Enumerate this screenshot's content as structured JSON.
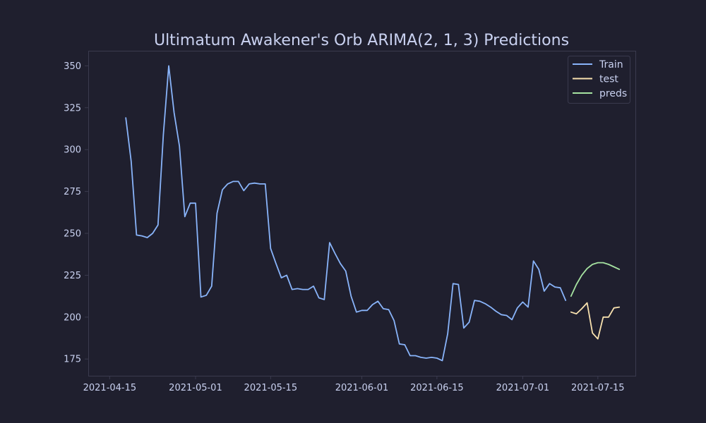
{
  "chart_data": {
    "type": "line",
    "title": "Ultimatum Awakener's Orb ARIMA(2, 1, 3) Predictions",
    "xlabel": "",
    "ylabel": "",
    "xlim": [
      "2021-04-11",
      "2021-07-22"
    ],
    "ylim": [
      165,
      359
    ],
    "x_ticks": [
      "2021-04-15",
      "2021-05-01",
      "2021-05-15",
      "2021-06-01",
      "2021-06-15",
      "2021-07-01",
      "2021-07-15"
    ],
    "y_ticks": [
      175,
      200,
      225,
      250,
      275,
      300,
      325,
      350
    ],
    "grid": false,
    "legend_position": "top-right",
    "colors": {
      "background": "#1f1f2e",
      "axes_border": "#3a3a4e",
      "text": "#c9d1f0",
      "train": "#89b4fa",
      "test": "#f9e2af",
      "preds": "#a6e3a1"
    },
    "series": [
      {
        "name": "Train",
        "color_key": "train",
        "points": [
          [
            "2021-04-18",
            319
          ],
          [
            "2021-04-19",
            293
          ],
          [
            "2021-04-20",
            249
          ],
          [
            "2021-04-21",
            248.5
          ],
          [
            "2021-04-22",
            247.5
          ],
          [
            "2021-04-23",
            250
          ],
          [
            "2021-04-24",
            255
          ],
          [
            "2021-04-25",
            309
          ],
          [
            "2021-04-26",
            350
          ],
          [
            "2021-04-27",
            322
          ],
          [
            "2021-04-28",
            302
          ],
          [
            "2021-04-29",
            260
          ],
          [
            "2021-04-30",
            268
          ],
          [
            "2021-05-01",
            268
          ],
          [
            "2021-05-02",
            212
          ],
          [
            "2021-05-03",
            213
          ],
          [
            "2021-05-04",
            218.5
          ],
          [
            "2021-05-05",
            262
          ],
          [
            "2021-05-06",
            276
          ],
          [
            "2021-05-07",
            279.5
          ],
          [
            "2021-05-08",
            281
          ],
          [
            "2021-05-09",
            281
          ],
          [
            "2021-05-10",
            275.5
          ],
          [
            "2021-05-11",
            279.5
          ],
          [
            "2021-05-12",
            280
          ],
          [
            "2021-05-13",
            279.5
          ],
          [
            "2021-05-14",
            279.5
          ],
          [
            "2021-05-15",
            241
          ],
          [
            "2021-05-16",
            232
          ],
          [
            "2021-05-17",
            223.5
          ],
          [
            "2021-05-18",
            225
          ],
          [
            "2021-05-19",
            216.5
          ],
          [
            "2021-05-20",
            217
          ],
          [
            "2021-05-21",
            216.5
          ],
          [
            "2021-05-22",
            216.5
          ],
          [
            "2021-05-23",
            218.5
          ],
          [
            "2021-05-24",
            211.5
          ],
          [
            "2021-05-25",
            210.5
          ],
          [
            "2021-05-26",
            244.5
          ],
          [
            "2021-05-27",
            238
          ],
          [
            "2021-05-28",
            232
          ],
          [
            "2021-05-29",
            227.5
          ],
          [
            "2021-05-30",
            212.5
          ],
          [
            "2021-05-31",
            203
          ],
          [
            "2021-06-01",
            204
          ],
          [
            "2021-06-02",
            204
          ],
          [
            "2021-06-03",
            207.5
          ],
          [
            "2021-06-04",
            209.5
          ],
          [
            "2021-06-05",
            205
          ],
          [
            "2021-06-06",
            204.5
          ],
          [
            "2021-06-07",
            198
          ],
          [
            "2021-06-08",
            184
          ],
          [
            "2021-06-09",
            183.5
          ],
          [
            "2021-06-10",
            177
          ],
          [
            "2021-06-11",
            177
          ],
          [
            "2021-06-12",
            176
          ],
          [
            "2021-06-13",
            175.5
          ],
          [
            "2021-06-14",
            176
          ],
          [
            "2021-06-15",
            175.5
          ],
          [
            "2021-06-16",
            174
          ],
          [
            "2021-06-17",
            190
          ],
          [
            "2021-06-18",
            220
          ],
          [
            "2021-06-19",
            219.5
          ],
          [
            "2021-06-20",
            193.5
          ],
          [
            "2021-06-21",
            197
          ],
          [
            "2021-06-22",
            210
          ],
          [
            "2021-06-23",
            209.5
          ],
          [
            "2021-06-24",
            208
          ],
          [
            "2021-06-25",
            206
          ],
          [
            "2021-06-26",
            203.5
          ],
          [
            "2021-06-27",
            201.5
          ],
          [
            "2021-06-28",
            201
          ],
          [
            "2021-06-29",
            198.5
          ],
          [
            "2021-06-30",
            205.5
          ],
          [
            "2021-07-01",
            209
          ],
          [
            "2021-07-02",
            206
          ],
          [
            "2021-07-03",
            233.5
          ],
          [
            "2021-07-04",
            228.5
          ],
          [
            "2021-07-05",
            215.5
          ],
          [
            "2021-07-06",
            220
          ],
          [
            "2021-07-07",
            218
          ],
          [
            "2021-07-08",
            217.5
          ],
          [
            "2021-07-09",
            210
          ]
        ]
      },
      {
        "name": "test",
        "color_key": "test",
        "points": [
          [
            "2021-07-10",
            203
          ],
          [
            "2021-07-11",
            202
          ],
          [
            "2021-07-12",
            205
          ],
          [
            "2021-07-13",
            208.5
          ],
          [
            "2021-07-14",
            190.5
          ],
          [
            "2021-07-15",
            187
          ],
          [
            "2021-07-16",
            200
          ],
          [
            "2021-07-17",
            200
          ],
          [
            "2021-07-18",
            205.5
          ],
          [
            "2021-07-19",
            206
          ]
        ]
      },
      {
        "name": "preds",
        "color_key": "preds",
        "points": [
          [
            "2021-07-10",
            212.5
          ],
          [
            "2021-07-11",
            219.5
          ],
          [
            "2021-07-12",
            225
          ],
          [
            "2021-07-13",
            229
          ],
          [
            "2021-07-14",
            231.5
          ],
          [
            "2021-07-15",
            232.5
          ],
          [
            "2021-07-16",
            232.5
          ],
          [
            "2021-07-17",
            231.5
          ],
          [
            "2021-07-18",
            230
          ],
          [
            "2021-07-19",
            228.5
          ]
        ]
      }
    ]
  }
}
